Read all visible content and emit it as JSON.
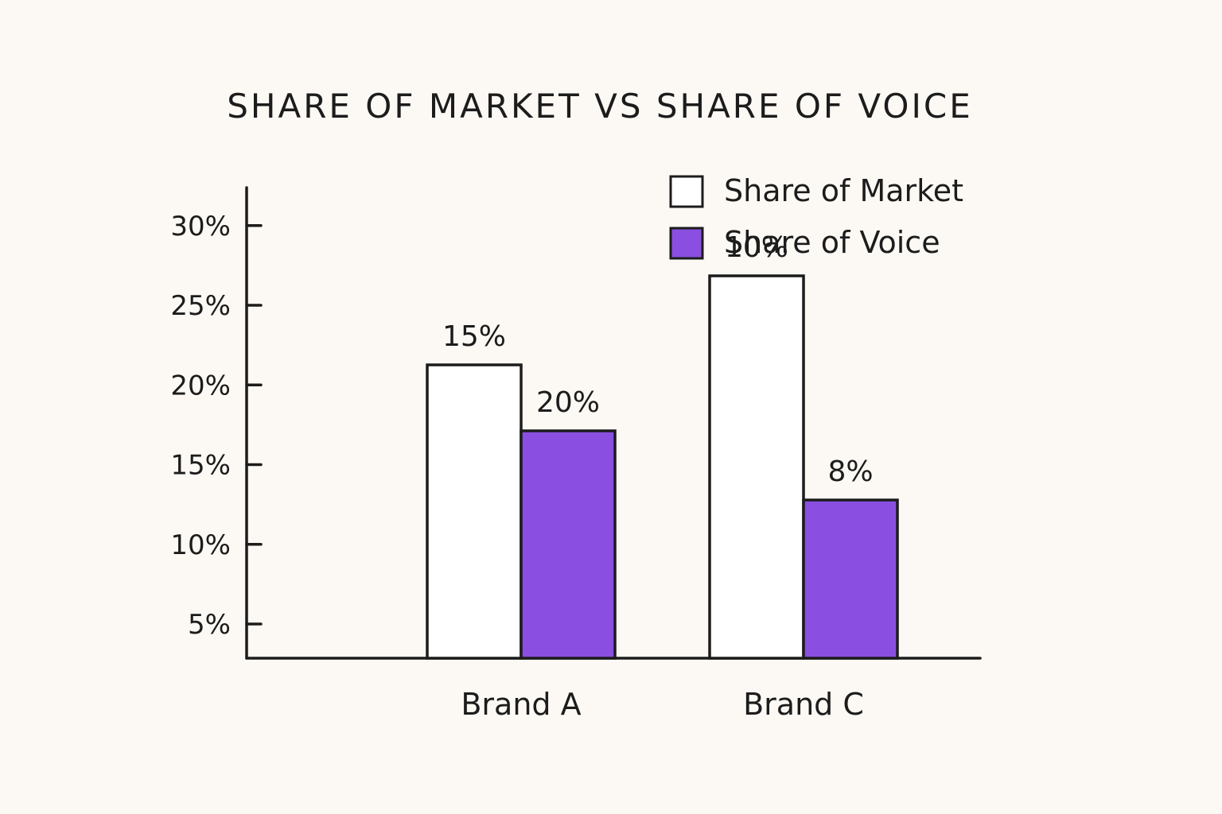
{
  "chart_data": {
    "type": "bar",
    "title": "SHARE OF MARKET VS SHARE OF VOICE",
    "categories": [
      "Brand A",
      "Brand C"
    ],
    "series": [
      {
        "name": "Share of Market",
        "values": [
          15,
          10
        ],
        "labels": [
          "15%",
          "10%"
        ],
        "color": "#ffffff"
      },
      {
        "name": "Share of Voice",
        "values": [
          20,
          8
        ],
        "labels": [
          "20%",
          "8%"
        ],
        "color": "#8a4fe0"
      }
    ],
    "y_ticks": [
      {
        "value": 5,
        "label": "5%"
      },
      {
        "value": 10,
        "label": "10%"
      },
      {
        "value": 15,
        "label": "15%"
      },
      {
        "value": 20,
        "label": "20%"
      },
      {
        "value": 25,
        "label": "25%"
      },
      {
        "value": 30,
        "label": "30%"
      }
    ],
    "ylim": [
      0,
      30
    ],
    "xlabel": "",
    "ylabel": "",
    "grid": false,
    "legend_position": "top-right"
  }
}
